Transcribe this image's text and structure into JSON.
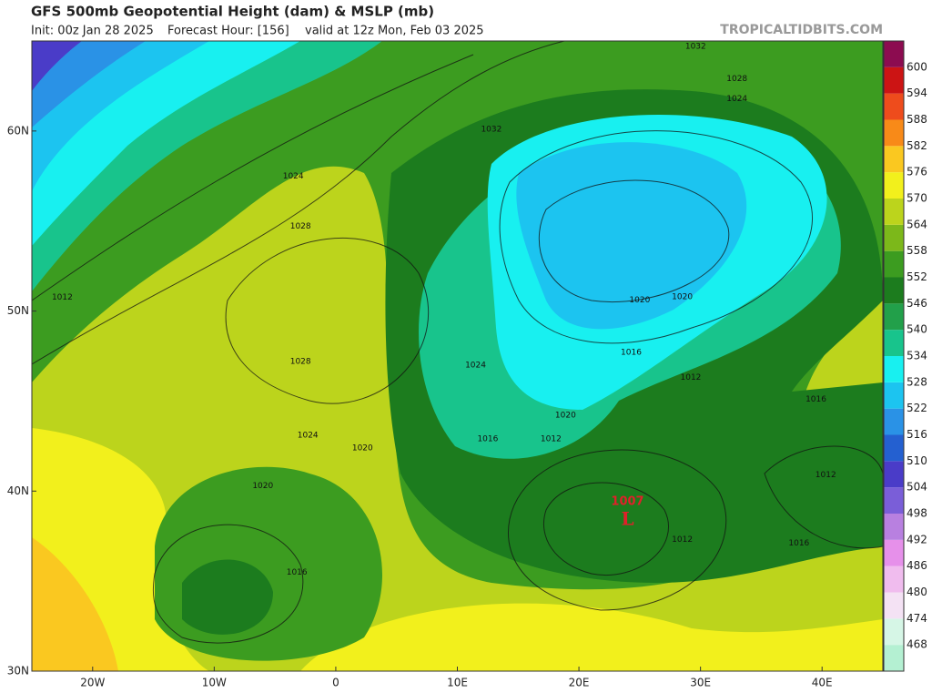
{
  "header": {
    "title": "GFS 500mb Geopotential Height (dam) & MSLP (mb)",
    "init": "Init: 00z Jan 28 2025",
    "forecast": "Forecast Hour: [156]",
    "valid": "valid at 12z Mon, Feb 03 2025",
    "watermark": "TROPICALTIDBITS.COM"
  },
  "map": {
    "xlim": [
      -25,
      45
    ],
    "ylim": [
      30,
      65
    ],
    "xticks": [
      {
        "value": -20,
        "label": "20W"
      },
      {
        "value": -10,
        "label": "10W"
      },
      0,
      {
        "value": 10,
        "label": "10E"
      },
      {
        "value": 20,
        "label": "20E"
      },
      {
        "value": 30,
        "label": "30E"
      },
      {
        "value": 40,
        "label": "40E"
      }
    ],
    "yticks": [
      {
        "value": 30,
        "label": "30N"
      },
      {
        "value": 40,
        "label": "40N"
      },
      {
        "value": 50,
        "label": "50N"
      },
      {
        "value": 60,
        "label": "60N"
      }
    ],
    "isobar_labels": [
      {
        "value": 1032,
        "lon": 12.8,
        "lat": 60.1
      },
      {
        "value": 1024,
        "lon": -3.5,
        "lat": 57.5
      },
      {
        "value": 1028,
        "lon": -2.9,
        "lat": 54.7
      },
      {
        "value": 1012,
        "lon": -22.5,
        "lat": 50.75
      },
      {
        "value": 1028,
        "lon": -2.9,
        "lat": 47.2
      },
      {
        "value": 1024,
        "lon": 11.5,
        "lat": 47.0
      },
      {
        "value": 1020,
        "lon": 25.0,
        "lat": 50.6
      },
      {
        "value": 1020,
        "lon": 28.5,
        "lat": 50.8
      },
      {
        "value": 1016,
        "lon": 24.3,
        "lat": 47.7
      },
      {
        "value": 1020,
        "lon": 18.9,
        "lat": 44.2
      },
      {
        "value": 1016,
        "lon": 12.5,
        "lat": 42.9
      },
      {
        "value": 1012,
        "lon": 17.7,
        "lat": 42.9
      },
      {
        "value": 1024,
        "lon": -2.3,
        "lat": 43.1
      },
      {
        "value": 1020,
        "lon": 2.2,
        "lat": 42.4
      },
      {
        "value": 1020,
        "lon": -6.0,
        "lat": 40.3
      },
      {
        "value": 1016,
        "lon": -3.2,
        "lat": 35.5
      },
      {
        "value": 1012,
        "lon": 28.5,
        "lat": 37.3
      },
      {
        "value": 1016,
        "lon": 38.1,
        "lat": 37.1
      },
      {
        "value": 1012,
        "lon": 40.3,
        "lat": 40.9
      },
      {
        "value": 1016,
        "lon": 39.5,
        "lat": 45.1
      },
      {
        "value": 1012,
        "lon": 29.2,
        "lat": 46.3
      },
      {
        "value": 1024,
        "lon": 33.0,
        "lat": 61.8
      },
      {
        "value": 1028,
        "lon": 33.0,
        "lat": 62.9
      },
      {
        "value": 1032,
        "lon": 29.6,
        "lat": 64.7
      }
    ],
    "low": {
      "pressure": 1007,
      "symbol": "L",
      "lon": 24.0,
      "lat": 38.4
    }
  },
  "colorbar": {
    "levels": [
      468,
      474,
      480,
      486,
      492,
      498,
      504,
      510,
      516,
      522,
      528,
      534,
      540,
      546,
      552,
      558,
      564,
      570,
      576,
      582,
      588,
      594,
      600
    ],
    "colors": [
      "#b4f0d2",
      "#d6f6e6",
      "#f4e2f4",
      "#f0bcee",
      "#e690ea",
      "#b880e0",
      "#7a5ed8",
      "#4a3cc8",
      "#2460d0",
      "#2a92e6",
      "#1cc4f0",
      "#18f0f0",
      "#18c48c",
      "#22a04a",
      "#1c7c1e",
      "#3c9c20",
      "#7cb81a",
      "#bcd41c",
      "#f2f01c",
      "#fac820",
      "#f88a18",
      "#ee4c1c",
      "#cc1414",
      "#8c0c50"
    ]
  }
}
